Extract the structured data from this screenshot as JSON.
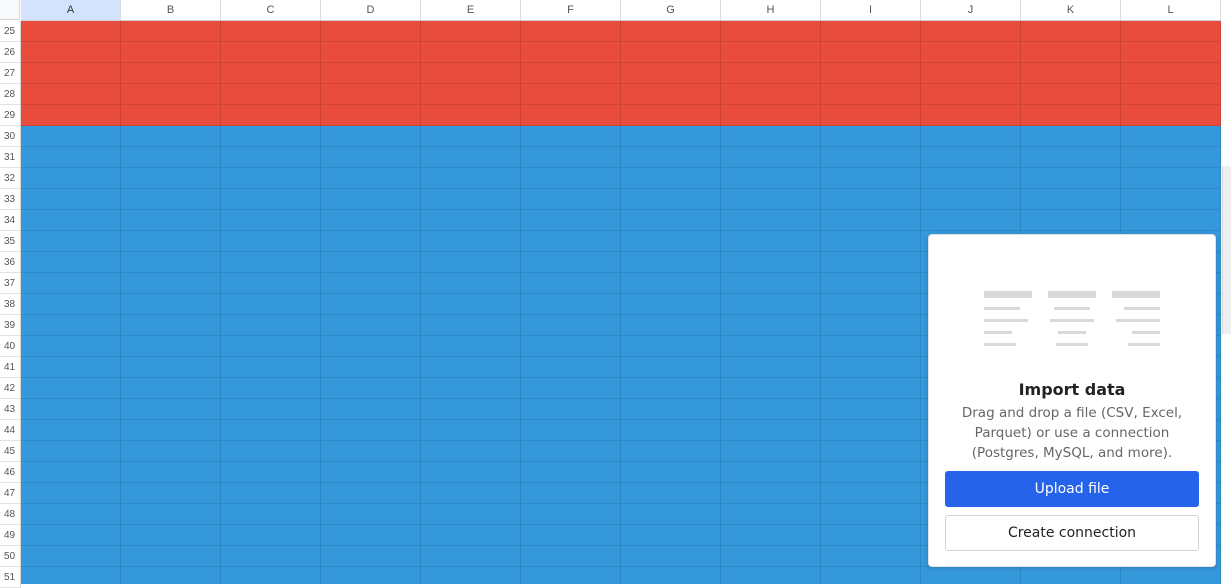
{
  "spreadsheet": {
    "columns": [
      "A",
      "B",
      "C",
      "D",
      "E",
      "F",
      "G",
      "H",
      "I",
      "J",
      "K",
      "L"
    ],
    "active_column": "A",
    "rows": [
      "25",
      "26",
      "27",
      "28",
      "29",
      "30",
      "31",
      "32",
      "33",
      "34",
      "35",
      "36",
      "37",
      "38",
      "39",
      "40",
      "41",
      "42",
      "43",
      "44",
      "45",
      "46",
      "47",
      "48",
      "49",
      "50",
      "51"
    ],
    "fill_colors": {
      "rows_25_29": "#e74c3c",
      "rows_30_51": "#3498db"
    }
  },
  "import_panel": {
    "illustration_icon": "table-align-illustration-icon",
    "title": "Import data",
    "description": "Drag and drop a file (CSV, Excel, Parquet) or use a connection (Postgres, MySQL, and more).",
    "upload_button_label": "Upload file",
    "create_connection_button_label": "Create connection",
    "accent_color": "#2563eb"
  }
}
